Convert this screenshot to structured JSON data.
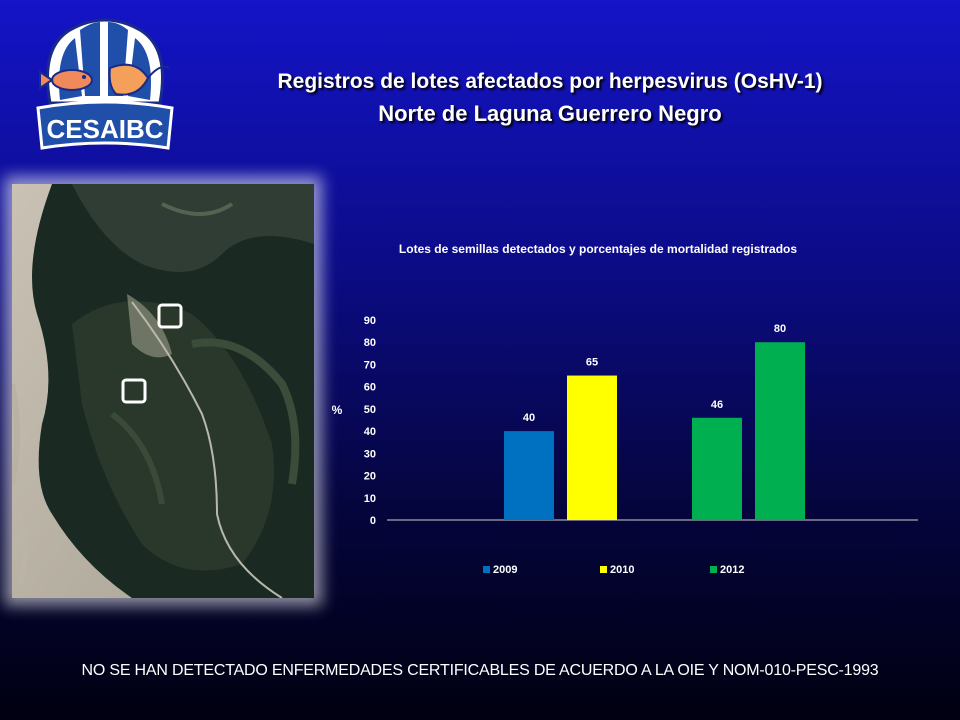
{
  "logo": {
    "text": "CESAIBC"
  },
  "header": {
    "title_line1": "Registros de lotes afectados por herpesvirus (OsHV-1)",
    "title_line2": "Norte de Laguna Guerrero Negro"
  },
  "map": {
    "marker_count": 2
  },
  "chart_data": {
    "type": "bar",
    "title": "Lotes de semillas detectados y porcentajes de mortalidad registrados",
    "ylabel": "%",
    "ylim": [
      0,
      90
    ],
    "yticks": [
      "0",
      "10",
      "20",
      "30",
      "40",
      "50",
      "60",
      "70",
      "80",
      "90"
    ],
    "grid": false,
    "legend_position": "bottom",
    "bars": [
      {
        "year": "2009",
        "value": 40,
        "label": "40",
        "color": "#0070c0"
      },
      {
        "year": "2010",
        "value": 65,
        "label": "65",
        "color": "#ffff00"
      },
      {
        "year": "2012",
        "value": 46,
        "label": "46",
        "color": "#00b050"
      },
      {
        "year": "2012",
        "value": 80,
        "label": "80",
        "color": "#00b050"
      }
    ],
    "legend": [
      {
        "name": "2009",
        "color": "#0070c0"
      },
      {
        "name": "2010",
        "color": "#ffff00"
      },
      {
        "name": "2012",
        "color": "#00b050"
      }
    ]
  },
  "footer": {
    "note": "NO SE HAN DETECTADO ENFERMEDADES CERTIFICABLES DE ACUERDO A LA OIE Y NOM-010-PESC-1993"
  }
}
